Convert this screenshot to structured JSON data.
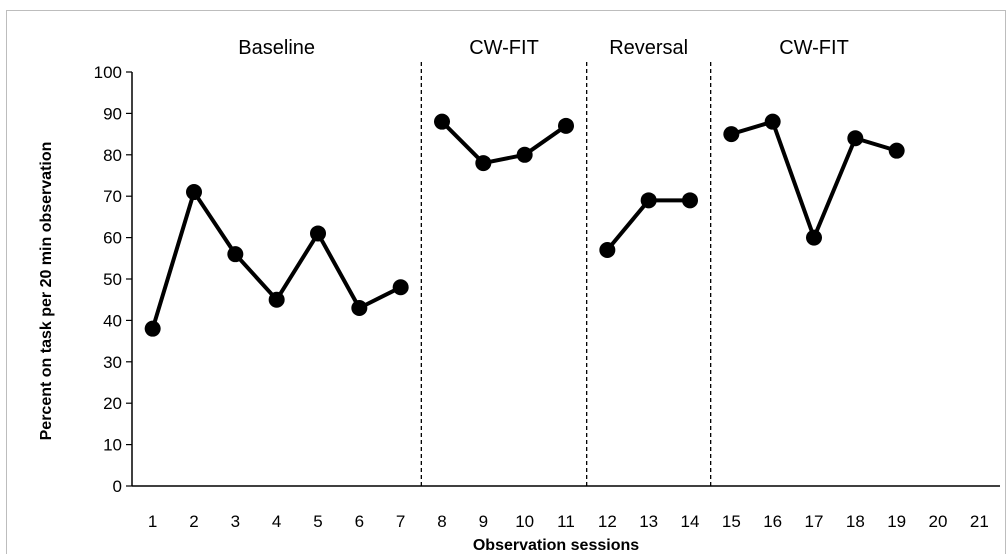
{
  "chart_data": {
    "type": "line",
    "title": "",
    "xlabel": "Observation sessions",
    "ylabel": "Percent on task per 20 min observation",
    "ylim": [
      0,
      100
    ],
    "xlim": [
      1,
      21
    ],
    "y_ticks": [
      0,
      10,
      20,
      30,
      40,
      50,
      60,
      70,
      80,
      90,
      100
    ],
    "x_ticks": [
      1,
      2,
      3,
      4,
      5,
      6,
      7,
      8,
      9,
      10,
      11,
      12,
      13,
      14,
      15,
      16,
      17,
      18,
      19,
      20,
      21
    ],
    "grid": false,
    "legend": "none",
    "phase_change_lines_after_session": [
      7.5,
      11.5,
      14.5
    ],
    "phases": [
      {
        "label": "Baseline",
        "start": 1,
        "end": 7
      },
      {
        "label": "CW-FIT",
        "start": 8,
        "end": 11
      },
      {
        "label": "Reversal",
        "start": 12,
        "end": 14
      },
      {
        "label": "CW-FIT",
        "start": 15,
        "end": 19
      }
    ],
    "series": [
      {
        "color": "#000000",
        "segments": [
          {
            "x": [
              1,
              2,
              3,
              4,
              5,
              6,
              7
            ],
            "y": [
              38,
              71,
              56,
              45,
              61,
              43,
              48
            ]
          },
          {
            "x": [
              8,
              9,
              10,
              11
            ],
            "y": [
              88,
              78,
              80,
              87
            ]
          },
          {
            "x": [
              12,
              13,
              14
            ],
            "y": [
              57,
              69,
              69
            ]
          },
          {
            "x": [
              15,
              16,
              17,
              18,
              19
            ],
            "y": [
              85,
              88,
              60,
              84,
              81
            ]
          }
        ]
      }
    ]
  }
}
